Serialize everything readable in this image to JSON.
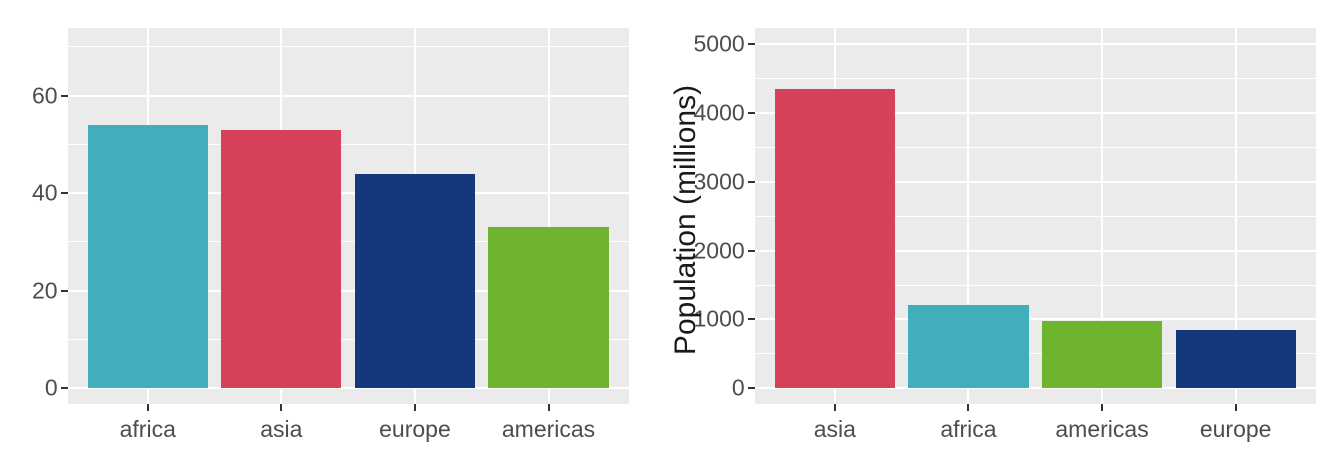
{
  "figure": {
    "background": "#FFFFFF",
    "panel_background": "#EBEBEB",
    "grid_color": "#FFFFFF",
    "tick_mark_color": "#333333",
    "tick_label_color": "#4D4D4D",
    "axis_title_color": "#1A1A1A"
  },
  "palette": {
    "africa": "#41AEBC",
    "asia": "#D6415A",
    "europe": "#14387C",
    "americas": "#6EB42F"
  },
  "chart_data": [
    {
      "type": "bar",
      "title": "",
      "xlabel": "",
      "ylabel": "",
      "categories": [
        "africa",
        "asia",
        "europe",
        "americas"
      ],
      "values": [
        54,
        53,
        44,
        33
      ],
      "colors": [
        "#41AEBC",
        "#D6415A",
        "#14387C",
        "#6EB42F"
      ],
      "y_ticks": [
        0,
        20,
        40,
        60
      ],
      "y_tick_labels": [
        "0",
        "20",
        "40",
        "60"
      ],
      "y_minor_ticks": [
        10,
        30,
        50,
        70
      ],
      "ylim": [
        -3.3,
        73.8
      ],
      "grid": "major-and-minor",
      "legend": "none"
    },
    {
      "type": "bar",
      "title": "",
      "xlabel": "",
      "ylabel": "Population (millions)",
      "categories": [
        "asia",
        "africa",
        "americas",
        "europe"
      ],
      "values": [
        4350,
        1210,
        975,
        850
      ],
      "colors": [
        "#D6415A",
        "#41AEBC",
        "#6EB42F",
        "#14387C"
      ],
      "y_ticks": [
        0,
        1000,
        2000,
        3000,
        4000,
        5000
      ],
      "y_tick_labels": [
        "0",
        "1000",
        "2000",
        "3000",
        "4000",
        "5000"
      ],
      "y_minor_ticks": [
        500,
        1500,
        2500,
        3500,
        4500
      ],
      "ylim": [
        -232,
        5228
      ],
      "grid": "major-and-minor",
      "legend": "none"
    }
  ]
}
